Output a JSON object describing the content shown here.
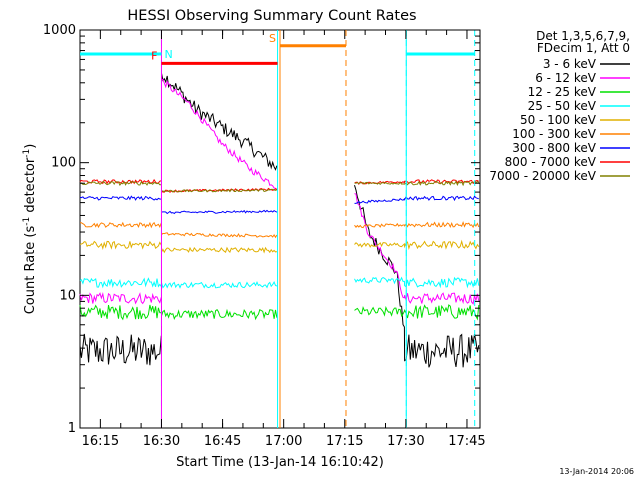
{
  "chart_data": {
    "type": "line",
    "title": "HESSI Observing Summary Count Rates",
    "xlabel": "Start Time (13-Jan-14 16:10:42)",
    "ylabel_main": "Count Rate (s",
    "ylabel_sup1": "-1",
    "ylabel_mid": " detector",
    "ylabel_sup2": "-1",
    "ylabel_end": ")",
    "yscale": "log",
    "ylim": [
      1,
      1000
    ],
    "xlim_minutes": [
      -0.7,
      97.5
    ],
    "x_ticks": [
      {
        "t": 4.3,
        "label": "16:15"
      },
      {
        "t": 19.3,
        "label": "16:30"
      },
      {
        "t": 34.3,
        "label": "16:45"
      },
      {
        "t": 49.3,
        "label": "17:00"
      },
      {
        "t": 64.3,
        "label": "17:15"
      },
      {
        "t": 79.3,
        "label": "17:30"
      },
      {
        "t": 94.3,
        "label": "17:45"
      }
    ],
    "y_ticks": [
      {
        "v": 1,
        "label": "1"
      },
      {
        "v": 10,
        "label": "10"
      },
      {
        "v": 100,
        "label": "100"
      },
      {
        "v": 1000,
        "label": "1000"
      }
    ],
    "legend_header": [
      "Det 1,3,5,6,7,9,",
      "FDecim 1, Att 0"
    ],
    "legend_position": "right",
    "series": [
      {
        "name": "3 - 6 keV",
        "color": "#000000",
        "spike": 480,
        "q": 3.8,
        "dur": [
          [
            19.3,
            480
          ],
          [
            28,
            250
          ],
          [
            40,
            140
          ],
          [
            47.8,
            90
          ]
        ],
        "post": [
          [
            66.7,
            70
          ],
          [
            70,
            30
          ],
          [
            74,
            20
          ],
          [
            77,
            15
          ],
          [
            79,
            5
          ]
        ],
        "noise": 0.12
      },
      {
        "name": "6 - 12 keV",
        "color": "#ff00ff",
        "spike": 420,
        "q": 9.5,
        "dur": [
          [
            19.3,
            420
          ],
          [
            26,
            280
          ],
          [
            34,
            140
          ],
          [
            41,
            90
          ],
          [
            47.8,
            65
          ]
        ],
        "post": [
          [
            66.7,
            60
          ],
          [
            70,
            30
          ],
          [
            74,
            20
          ],
          [
            77,
            15
          ],
          [
            79,
            9
          ]
        ],
        "noise": 0.06
      },
      {
        "name": "12 - 25 keV",
        "color": "#00e000",
        "spike": 7.2,
        "q": 7.5,
        "dur": [
          [
            19.3,
            7.2
          ],
          [
            47.8,
            7.2
          ]
        ],
        "post": [
          [
            66.7,
            7.5
          ],
          [
            79,
            7.5
          ]
        ],
        "noise": 0.08
      },
      {
        "name": "25 - 50 keV",
        "color": "#00ffff",
        "spike": 12,
        "q": 12.5,
        "dur": [
          [
            19.3,
            12
          ],
          [
            47.8,
            12
          ]
        ],
        "post": [
          [
            66.7,
            13
          ],
          [
            79,
            13
          ]
        ],
        "noise": 0.05
      },
      {
        "name": "50 - 100 keV",
        "color": "#e0b000",
        "spike": 22,
        "q": 24,
        "dur": [
          [
            19.3,
            22
          ],
          [
            47.8,
            22
          ]
        ],
        "post": [
          [
            66.7,
            24
          ],
          [
            79,
            24
          ]
        ],
        "noise": 0.04
      },
      {
        "name": "100 - 300 keV",
        "color": "#ff8000",
        "spike": 29,
        "q": 34,
        "dur": [
          [
            19.3,
            29
          ],
          [
            47.8,
            28
          ]
        ],
        "post": [
          [
            66.7,
            33
          ],
          [
            79,
            34
          ]
        ],
        "noise": 0.025
      },
      {
        "name": "300 - 800 keV",
        "color": "#0000ff",
        "spike": 42,
        "q": 54,
        "dur": [
          [
            19.3,
            42
          ],
          [
            47.8,
            43
          ]
        ],
        "post": [
          [
            66.7,
            50
          ],
          [
            79,
            53
          ]
        ],
        "noise": 0.02
      },
      {
        "name": "800 - 7000 keV",
        "color": "#ff0000",
        "spike": 61,
        "q": 72,
        "dur": [
          [
            19.3,
            61
          ],
          [
            47.8,
            63
          ]
        ],
        "post": [
          [
            66.7,
            70
          ],
          [
            79,
            72
          ]
        ],
        "noise": 0.02
      },
      {
        "name": "7000 - 20000 keV",
        "color": "#808000",
        "spike": 61,
        "q": 70,
        "dur": [
          [
            19.3,
            61
          ],
          [
            47.8,
            62
          ]
        ],
        "post": [
          [
            66.7,
            70
          ],
          [
            79,
            70
          ]
        ],
        "noise": 0.02
      }
    ],
    "flag_bars": [
      {
        "label": "",
        "color": "#00ffff",
        "start": -0.7,
        "end": 18.7,
        "level": 660
      },
      {
        "label": "N",
        "color": "#00ffff",
        "start": 18.7,
        "end": 19.3,
        "level": 660
      },
      {
        "label": "F",
        "color": "#ff0000",
        "start": 19.3,
        "end": 47.8,
        "level": 560
      },
      {
        "label": "S",
        "color": "#ff8000",
        "start": 48.4,
        "end": 64.6,
        "level": 760
      },
      {
        "label": "",
        "color": "#00ffff",
        "start": 79.4,
        "end": 96.2,
        "level": 660
      }
    ],
    "vlines": [
      {
        "t": 19.3,
        "color": "#00ffff",
        "style": "dashed"
      },
      {
        "t": 19.3,
        "color": "#ff00ff",
        "style": "solid"
      },
      {
        "t": 47.8,
        "color": "#00ffff",
        "style": "solid"
      },
      {
        "t": 48.4,
        "color": "#ff8000",
        "style": "solid"
      },
      {
        "t": 64.6,
        "color": "#ff8000",
        "style": "dashed"
      },
      {
        "t": 79.4,
        "color": "#00ffff",
        "style": "solid"
      },
      {
        "t": 79.4,
        "color": "#00ffff",
        "style": "dashed"
      },
      {
        "t": 96.2,
        "color": "#00ffff",
        "style": "dashed"
      }
    ],
    "gaps": [
      [
        47.8,
        66.7
      ]
    ],
    "segments": {
      "quiet1": [
        -0.7,
        19.3
      ],
      "quiet2": [
        79.0,
        97.5
      ]
    }
  },
  "footer": {
    "timestamp": "13-Jan-2014 20:06"
  }
}
